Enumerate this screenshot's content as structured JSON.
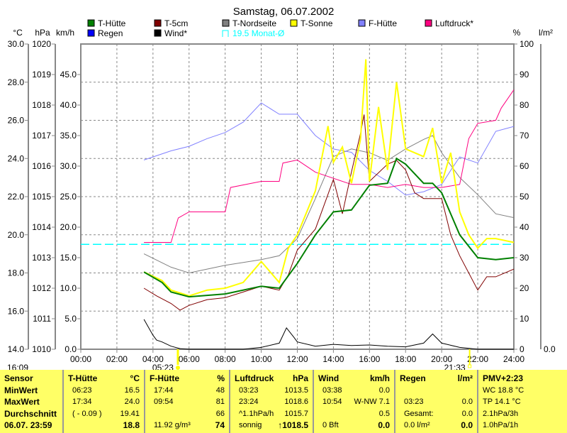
{
  "chart_data": {
    "type": "line",
    "title": "Samstag, 06.07.2002",
    "axes": {
      "celsius": {
        "unit": "°C",
        "range": [
          14,
          30
        ],
        "ticks": [
          "14.0",
          "16.0",
          "18.0",
          "20.0",
          "22.0",
          "24.0",
          "26.0",
          "28.0",
          "30.0"
        ]
      },
      "hpa": {
        "unit": "hPa",
        "range": [
          1010,
          1020
        ],
        "ticks": [
          "1010",
          "1011",
          "1012",
          "1013",
          "1014",
          "1015",
          "1016",
          "1017",
          "1018",
          "1019",
          "1020"
        ]
      },
      "kmh": {
        "unit": "km/h",
        "range": [
          0,
          50
        ],
        "ticks": [
          "0.0",
          "5.0",
          "10.0",
          "15.0",
          "20.0",
          "25.0",
          "30.0",
          "35.0",
          "40.0",
          "45.0"
        ]
      },
      "percent": {
        "unit": "%",
        "range": [
          0,
          100
        ],
        "ticks": [
          "0",
          "10",
          "20",
          "30",
          "40",
          "50",
          "60",
          "70",
          "80",
          "90",
          "100"
        ]
      },
      "rain": {
        "unit": "l/m²",
        "range": [
          0,
          1
        ],
        "ticks": [
          "0.0"
        ]
      },
      "x": {
        "range": [
          0,
          24
        ],
        "ticks": [
          "00:00",
          "02:00",
          "04:00",
          "06:00",
          "08:00",
          "10:00",
          "12:00",
          "14:00",
          "16:00",
          "18:00",
          "20:00",
          "22:00",
          "24:00"
        ]
      }
    },
    "legend": [
      {
        "name": "T-Hütte",
        "color": "#008000"
      },
      {
        "name": "T-5cm",
        "color": "#800000"
      },
      {
        "name": "T-Nordseite",
        "color": "#808080"
      },
      {
        "name": "T-Sonne",
        "color": "#ffff00"
      },
      {
        "name": "F-Hütte",
        "color": "#8080ff"
      },
      {
        "name": "Luftdruck*",
        "color": "#ff0080"
      },
      {
        "name": "Regen",
        "color": "#0000ff"
      },
      {
        "name": "Wind*",
        "color": "#000000"
      },
      {
        "name": "19.5 Monat-Ø",
        "color": "#00ffff"
      }
    ],
    "monthly_avg_c": 19.5,
    "series": [
      {
        "name": "T-Nordseite",
        "axis": "celsius",
        "color": "#808080",
        "width": 1,
        "points": [
          [
            3.5,
            19.0
          ],
          [
            5,
            18.3
          ],
          [
            6,
            18.0
          ],
          [
            7,
            18.2
          ],
          [
            8,
            18.4
          ],
          [
            10,
            18.7
          ],
          [
            11,
            18.9
          ],
          [
            12,
            19.8
          ],
          [
            13,
            21.9
          ],
          [
            14,
            24.1
          ],
          [
            15,
            24.5
          ],
          [
            16,
            24.3
          ],
          [
            17,
            23.9
          ],
          [
            18,
            24.5
          ],
          [
            19,
            25.0
          ],
          [
            19.5,
            25.2
          ],
          [
            20,
            24.3
          ],
          [
            21,
            23.0
          ],
          [
            22,
            22.1
          ],
          [
            23,
            21.1
          ],
          [
            24,
            20.9
          ]
        ]
      },
      {
        "name": "F-Hütte",
        "axis": "percent",
        "color": "#8080ff",
        "width": 1,
        "points": [
          [
            3.5,
            62
          ],
          [
            5,
            65
          ],
          [
            6,
            66.5
          ],
          [
            7,
            69
          ],
          [
            8,
            71
          ],
          [
            9,
            74.4
          ],
          [
            10,
            80.7
          ],
          [
            11,
            77
          ],
          [
            12,
            77
          ],
          [
            13,
            70
          ],
          [
            14,
            65.6
          ],
          [
            15,
            64.5
          ],
          [
            16,
            58.6
          ],
          [
            17,
            55
          ],
          [
            18,
            50.5
          ],
          [
            19,
            51.6
          ],
          [
            20,
            54
          ],
          [
            20.5,
            58.6
          ],
          [
            21,
            63
          ],
          [
            22,
            61
          ],
          [
            23,
            71.4
          ],
          [
            24,
            73
          ]
        ]
      },
      {
        "name": "Luftdruck*",
        "axis": "hpa",
        "color": "#ff0080",
        "width": 1,
        "points": [
          [
            3.5,
            1013.5
          ],
          [
            5,
            1013.5
          ],
          [
            5.4,
            1014.3
          ],
          [
            6,
            1014.5
          ],
          [
            8,
            1014.5
          ],
          [
            8.3,
            1015.3
          ],
          [
            10,
            1015.5
          ],
          [
            11,
            1015.5
          ],
          [
            11.2,
            1016.1
          ],
          [
            12,
            1016.2
          ],
          [
            13,
            1015.8
          ],
          [
            14,
            1015.6
          ],
          [
            15,
            1015.4
          ],
          [
            16,
            1015.4
          ],
          [
            17,
            1015.3
          ],
          [
            18,
            1015.4
          ],
          [
            19,
            1015.3
          ],
          [
            20,
            1015.3
          ],
          [
            21,
            1015.4
          ],
          [
            21.5,
            1016.9
          ],
          [
            22,
            1017.4
          ],
          [
            23,
            1017.5
          ],
          [
            23.3,
            1017.9
          ],
          [
            24,
            1018.5
          ]
        ]
      },
      {
        "name": "T-5cm",
        "axis": "celsius",
        "color": "#800000",
        "width": 1,
        "points": [
          [
            3.5,
            17.2
          ],
          [
            4.2,
            16.8
          ],
          [
            5,
            16.4
          ],
          [
            5.5,
            16.05
          ],
          [
            6,
            16.3
          ],
          [
            7,
            16.6
          ],
          [
            8,
            16.7
          ],
          [
            9,
            17.0
          ],
          [
            10,
            17.3
          ],
          [
            11,
            17.1
          ],
          [
            11.5,
            17.9
          ],
          [
            12,
            19.2
          ],
          [
            13,
            20.3
          ],
          [
            14,
            22.9
          ],
          [
            14.5,
            21.1
          ],
          [
            15,
            23.3
          ],
          [
            15.5,
            25.3
          ],
          [
            15.7,
            26.3
          ],
          [
            16,
            22.8
          ],
          [
            17,
            23.7
          ],
          [
            17.5,
            23.9
          ],
          [
            18,
            23.4
          ],
          [
            18.5,
            22.2
          ],
          [
            19,
            21.9
          ],
          [
            20,
            21.9
          ],
          [
            20.5,
            20.0
          ],
          [
            21,
            18.9
          ],
          [
            22,
            17.1
          ],
          [
            22.5,
            17.8
          ],
          [
            23,
            17.8
          ],
          [
            24,
            18.2
          ]
        ]
      },
      {
        "name": "T-Sonne",
        "axis": "celsius",
        "color": "#ffff00",
        "width": 2,
        "points": [
          [
            3.5,
            18.05
          ],
          [
            4.5,
            17.6
          ],
          [
            5,
            17.1
          ],
          [
            6,
            16.8
          ],
          [
            7,
            17.1
          ],
          [
            8,
            17.2
          ],
          [
            9,
            17.5
          ],
          [
            10,
            18.6
          ],
          [
            11,
            17.5
          ],
          [
            11.5,
            19.3
          ],
          [
            12,
            20.0
          ],
          [
            13,
            22.3
          ],
          [
            13.7,
            25.7
          ],
          [
            14,
            23.8
          ],
          [
            14.5,
            24.6
          ],
          [
            15,
            22.7
          ],
          [
            15.5,
            25.0
          ],
          [
            15.8,
            29.2
          ],
          [
            16,
            22.8
          ],
          [
            16.5,
            26.7
          ],
          [
            17,
            23.4
          ],
          [
            17.5,
            28.0
          ],
          [
            18,
            24.5
          ],
          [
            19,
            24.1
          ],
          [
            19.5,
            25.6
          ],
          [
            20,
            22.7
          ],
          [
            20.5,
            24.3
          ],
          [
            21,
            21.2
          ],
          [
            21.5,
            20.0
          ],
          [
            22,
            19.3
          ],
          [
            22.5,
            19.8
          ],
          [
            23,
            19.8
          ],
          [
            24,
            19.6
          ]
        ]
      },
      {
        "name": "T-Hütte",
        "axis": "celsius",
        "color": "#008000",
        "width": 2,
        "points": [
          [
            3.5,
            18.05
          ],
          [
            4.5,
            17.5
          ],
          [
            5,
            17.0
          ],
          [
            6,
            16.75
          ],
          [
            8,
            16.9
          ],
          [
            10,
            17.3
          ],
          [
            11,
            17.2
          ],
          [
            12,
            18.5
          ],
          [
            13,
            20.0
          ],
          [
            14,
            21.2
          ],
          [
            15,
            21.3
          ],
          [
            16,
            22.6
          ],
          [
            17,
            22.7
          ],
          [
            17.5,
            24.0
          ],
          [
            18,
            23.7
          ],
          [
            19,
            22.7
          ],
          [
            19.5,
            22.7
          ],
          [
            20,
            22.2
          ],
          [
            21,
            20.0
          ],
          [
            22,
            18.8
          ],
          [
            23,
            18.7
          ],
          [
            24,
            18.8
          ]
        ]
      },
      {
        "name": "Wind*",
        "axis": "kmh",
        "color": "#000000",
        "width": 1,
        "points": [
          [
            3.5,
            4.9
          ],
          [
            4,
            2.3
          ],
          [
            4.2,
            1.5
          ],
          [
            4.5,
            1.2
          ],
          [
            5,
            0.5
          ],
          [
            5.5,
            0.1
          ],
          [
            6,
            0
          ],
          [
            9,
            0
          ],
          [
            10,
            0.3
          ],
          [
            11,
            1.0
          ],
          [
            11.4,
            3.5
          ],
          [
            11.8,
            2.0
          ],
          [
            12,
            1.2
          ],
          [
            13,
            0.5
          ],
          [
            14,
            0.8
          ],
          [
            15,
            0.6
          ],
          [
            16,
            0.7
          ],
          [
            17,
            0.5
          ],
          [
            18,
            0.4
          ],
          [
            19,
            1.0
          ],
          [
            19.5,
            2.5
          ],
          [
            20,
            1.0
          ],
          [
            21,
            0.3
          ],
          [
            22,
            0
          ],
          [
            24,
            0
          ]
        ]
      }
    ],
    "sunrise": "05:23",
    "sunset": "21:33",
    "sunrise_h": 5.38,
    "sunset_h": 21.55,
    "corner_time": "16:09"
  },
  "table": {
    "cols": [
      {
        "h": [
          "Sensor",
          ""
        ],
        "rows": [
          [
            "MinWert",
            ""
          ],
          [
            "MaxWert",
            ""
          ],
          [
            "Durchschnitt",
            ""
          ],
          [
            "06.07. 23:59",
            ""
          ]
        ]
      },
      {
        "h": [
          "T-Hütte",
          "°C"
        ],
        "rows": [
          [
            "06:23",
            "16.5"
          ],
          [
            "17:34",
            "24.0"
          ],
          [
            "( - 0.09 )",
            "19.41"
          ],
          [
            "",
            "18.8"
          ]
        ]
      },
      {
        "h": [
          "F-Hütte",
          "%"
        ],
        "rows": [
          [
            "17:44",
            "48"
          ],
          [
            "09:54",
            "81"
          ],
          [
            "",
            "66"
          ],
          [
            "11.92 g/m³",
            "74"
          ]
        ]
      },
      {
        "h": [
          "Luftdruck",
          "hPa"
        ],
        "rows": [
          [
            "03:23",
            "1013.5"
          ],
          [
            "23:24",
            "1018.6"
          ],
          [
            "^1.1hPa/h",
            "1015.7"
          ],
          [
            "sonnig",
            "↑1018.5"
          ]
        ]
      },
      {
        "h": [
          "Wind",
          "km/h"
        ],
        "rows": [
          [
            "03:38",
            "0.0"
          ],
          [
            "10:54",
            "W-NW 7.1"
          ],
          [
            "",
            "0.5"
          ],
          [
            "0 Bft",
            "0.0"
          ]
        ]
      },
      {
        "h": [
          "Regen",
          "l/m²"
        ],
        "rows": [
          [
            "",
            ""
          ],
          [
            "03:23",
            "0.0"
          ],
          [
            "Gesamt:",
            "0.0"
          ],
          [
            "0.0 l/m²",
            "0.0"
          ]
        ]
      },
      {
        "h": [
          "PMV+2:23",
          ""
        ],
        "rows": [
          [
            "WC 18.8 °C",
            ""
          ],
          [
            "TP 14.1 °C",
            ""
          ],
          [
            "2.1hPa/3h",
            ""
          ],
          [
            "1.0hPa/1h",
            ""
          ]
        ]
      }
    ]
  }
}
